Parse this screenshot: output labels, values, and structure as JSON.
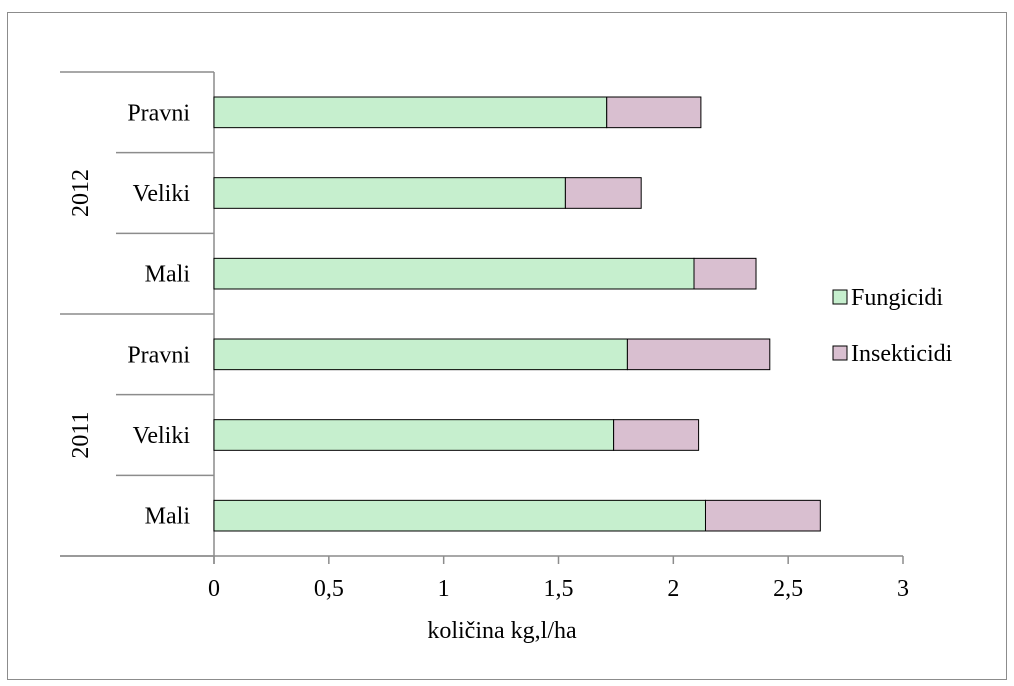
{
  "chart_data": {
    "type": "bar",
    "orientation": "horizontal",
    "stacked": true,
    "groups": [
      {
        "label": "2011",
        "categories": [
          "Mali",
          "Veliki",
          "Pravni"
        ]
      },
      {
        "label": "2012",
        "categories": [
          "Mali",
          "Veliki",
          "Pravni"
        ]
      }
    ],
    "categories": [
      "Mali",
      "Veliki",
      "Pravni",
      "Mali",
      "Veliki",
      "Pravni"
    ],
    "series": [
      {
        "name": "Fungicidi",
        "color": "#c6efce",
        "values": [
          2.14,
          1.74,
          1.8,
          2.09,
          1.53,
          1.71
        ]
      },
      {
        "name": "Insekticidi",
        "color": "#d9bfd0",
        "values": [
          0.5,
          0.37,
          0.62,
          0.27,
          0.33,
          0.41
        ]
      }
    ],
    "xlabel": "količina kg,l/ha",
    "xlim": [
      0,
      3
    ],
    "xticks": [
      "0",
      "0,5",
      "1",
      "1,5",
      "2",
      "2,5",
      "3"
    ],
    "grid": false,
    "legend_position": "right"
  }
}
